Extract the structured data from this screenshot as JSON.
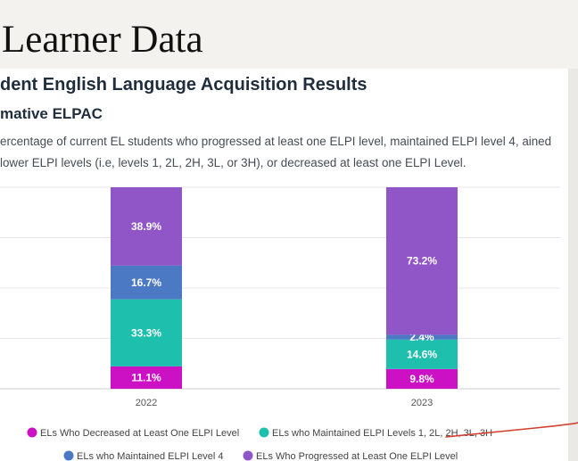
{
  "slide": {
    "title": "Learner Data"
  },
  "chart_header": {
    "title": "dent English Language Acquisition Results",
    "subtitle": "mative ELPAC",
    "description": "ercentage of current EL students who progressed at least one ELPI level, maintained ELPI level 4, ained lower ELPI levels (i.e, levels 1, 2L, 2H, 3L, or 3H), or decreased at least one ELPI Level."
  },
  "chart_data": {
    "type": "bar",
    "stacked": true,
    "categories": [
      "2022",
      "2023"
    ],
    "series": [
      {
        "name": "ELs Who Decreased at Least One ELPI Level",
        "color": "#cc10c4",
        "values": [
          11.1,
          9.8
        ],
        "labels": [
          "11.1%",
          "9.8%"
        ]
      },
      {
        "name": "ELs who Maintained ELPI Levels 1, 2L, 2H, 3L, 3H",
        "color": "#1fbfae",
        "values": [
          33.3,
          14.6
        ],
        "labels": [
          "33.3%",
          "14.6%"
        ]
      },
      {
        "name": "ELs who Maintained ELPI Level 4",
        "color": "#4c79c4",
        "values": [
          16.7,
          2.4
        ],
        "labels": [
          "16.7%",
          "2.4%"
        ]
      },
      {
        "name": "ELs Who Progressed at Least One ELPI Level",
        "color": "#9056c8",
        "values": [
          38.9,
          73.2
        ],
        "labels": [
          "38.9%",
          "73.2%"
        ]
      }
    ],
    "ylim": [
      0,
      100
    ],
    "grid": true,
    "legend_position": "bottom"
  }
}
